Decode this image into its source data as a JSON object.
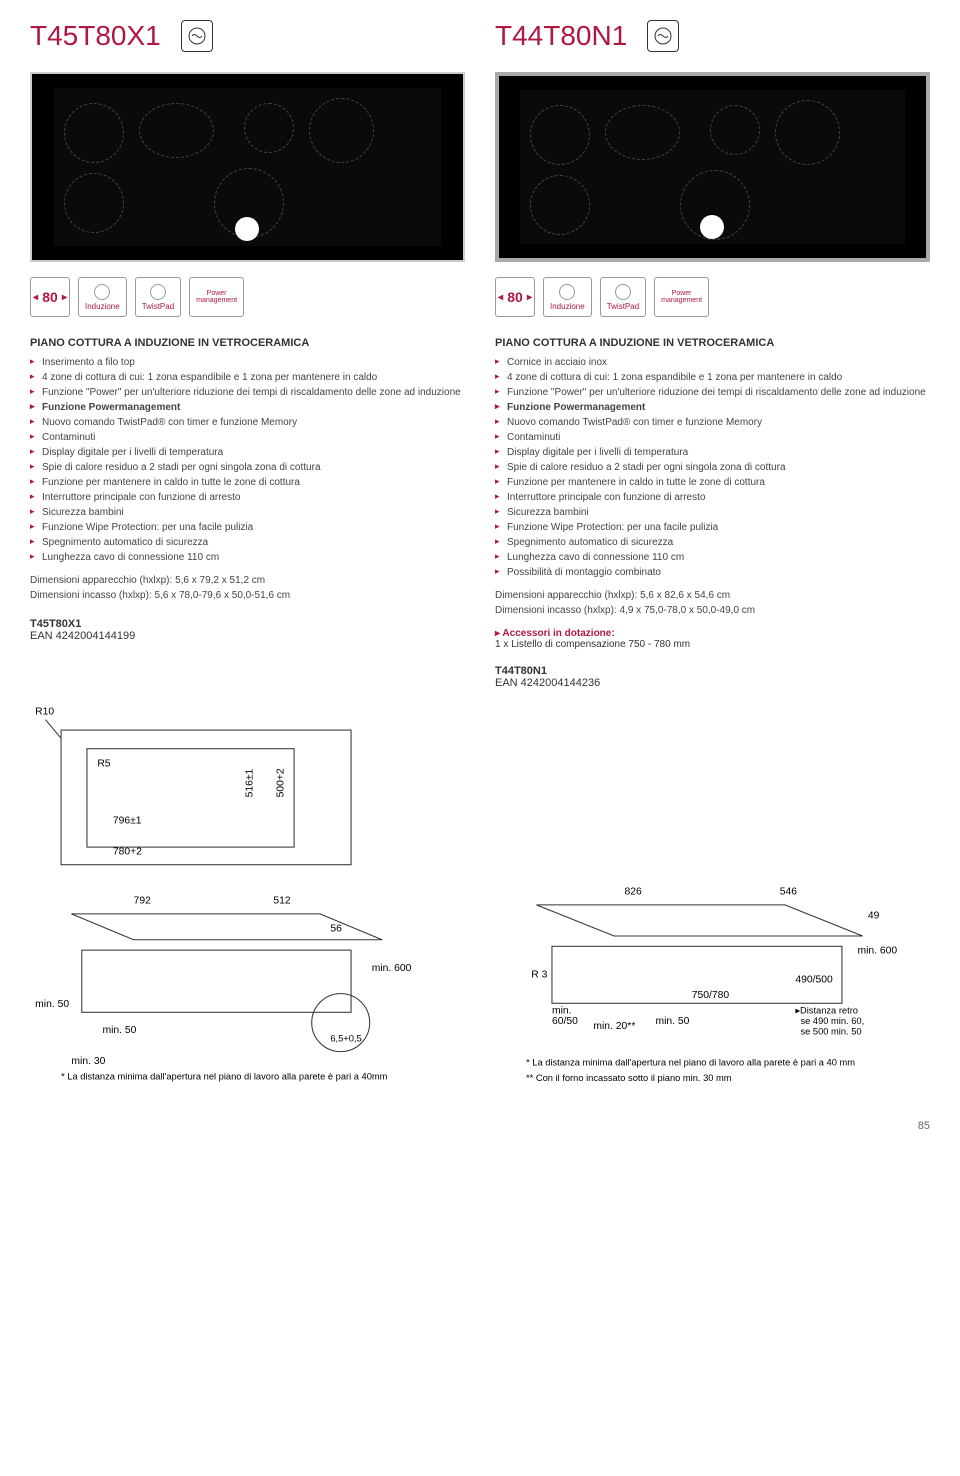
{
  "left": {
    "model": "T45T80X1",
    "badges": {
      "width": "80",
      "b1": "Induzione",
      "b2": "TwistPad",
      "b3": "Power\nmanagement"
    },
    "section_title": "PIANO COTTURA A INDUZIONE IN VETROCERAMICA",
    "features": [
      "Inserimento a filo top",
      "4 zone di cottura di cui: 1 zona espandibile e 1 zona per mantenere in caldo",
      "Funzione \"Power\" per un'ulteriore riduzione dei tempi di riscaldamento delle zone ad induzione",
      "Funzione Powermanagement",
      "Nuovo comando TwistPad® con timer e funzione Memory",
      "Contaminuti",
      "Display digitale per i livelli di temperatura",
      "Spie di calore residuo a 2 stadi per ogni singola zona di cottura",
      "Funzione per mantenere in caldo in tutte le zone di cottura",
      "Interruttore principale con funzione di arresto",
      "Sicurezza bambini",
      "Funzione Wipe Protection: per una facile pulizia",
      "Spegnimento automatico di sicurezza",
      "Lunghezza cavo di connessione 110 cm"
    ],
    "bold_idx": [
      3
    ],
    "dim1": "Dimensioni apparecchio (hxlxp): 5,6 x 79,2 x 51,2 cm",
    "dim2": "Dimensioni incasso (hxlxp): 5,6 x 78,0-79,6 x 50,0-51,6 cm",
    "ean_model": "T45T80X1",
    "ean": "EAN 4242004144199",
    "diag1": {
      "r10": "R10",
      "r5": "R5",
      "d1": "796±1",
      "d2": "780+2",
      "d3": "516±1",
      "d4": "500+2"
    },
    "diag2": {
      "d1": "792",
      "d2": "512",
      "d3": "56",
      "d4": "min. 600",
      "d5": "min. 50",
      "d6": "min. 50",
      "d7": "6,5+0,5",
      "d8": "min. 30",
      "note": "* La distanza minima dall'apertura nel piano di lavoro alla parete è pari a 40mm"
    }
  },
  "right": {
    "model": "T44T80N1",
    "badges": {
      "width": "80",
      "b1": "Induzione",
      "b2": "TwistPad",
      "b3": "Power\nmanagement"
    },
    "section_title": "PIANO COTTURA A INDUZIONE IN VETROCERAMICA",
    "features": [
      "Cornice in acciaio inox",
      "4 zone di cottura di cui: 1 zona espandibile e 1 zona per mantenere in caldo",
      "Funzione \"Power\" per un'ulteriore riduzione dei tempi di riscaldamento delle zone ad induzione",
      "Funzione Powermanagement",
      "Nuovo comando TwistPad® con timer e funzione Memory",
      "Contaminuti",
      "Display digitale per i livelli di temperatura",
      "Spie di calore residuo a 2 stadi per ogni singola zona di cottura",
      "Funzione per mantenere in caldo in tutte le zone di cottura",
      "Interruttore principale con funzione di arresto",
      "Sicurezza bambini",
      "Funzione Wipe Protection: per una facile pulizia",
      "Spegnimento automatico di sicurezza",
      "Lunghezza cavo di connessione 110 cm",
      "Possibilità di montaggio combinato"
    ],
    "bold_idx": [
      3
    ],
    "dim1": "Dimensioni apparecchio (hxlxp): 5,6 x 82,6 x 54,6 cm",
    "dim2": "Dimensioni incasso (hxlxp): 4,9 x 75,0-78,0 x 50,0-49,0 cm",
    "acc_title": "▸ Accessori in dotazione:",
    "acc_text": "1 x Listello di compensazione 750 - 780 mm",
    "ean_model": "T44T80N1",
    "ean": "EAN 4242004144236",
    "diag": {
      "d1": "826",
      "d2": "546",
      "d3": "49",
      "d4": "min. 600",
      "d5": "R 3",
      "d6": "490/500",
      "d7": "750/780",
      "d8": "min. 60/50",
      "d9": "min. 50",
      "d10": "min. 20**",
      "d11": "Distanza retro se 490 min. 60, se 500 min. 50",
      "note1": "* La distanza minima dall'apertura nel piano di lavoro alla parete è pari a 40 mm",
      "note2": "** Con il forno incassato sotto il piano min. 30 mm"
    }
  },
  "page_num": "85"
}
